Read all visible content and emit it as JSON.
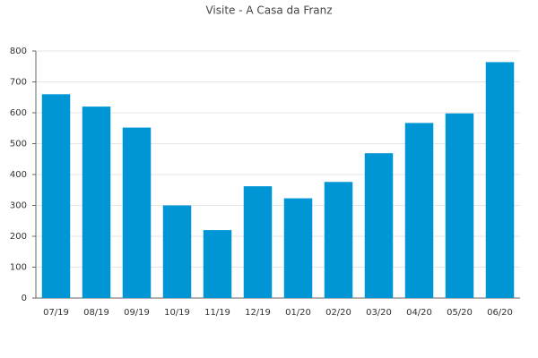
{
  "chart_data": {
    "type": "bar",
    "title": "Visite - A Casa da Franz",
    "categories": [
      "07/19",
      "08/19",
      "09/19",
      "10/19",
      "11/19",
      "12/19",
      "01/20",
      "02/20",
      "03/20",
      "04/20",
      "05/20",
      "06/20"
    ],
    "values": [
      660,
      620,
      552,
      300,
      220,
      362,
      323,
      376,
      469,
      567,
      598,
      764
    ],
    "color": "#0096d6",
    "ylim": [
      0,
      800
    ],
    "yticks": [
      0,
      100,
      200,
      300,
      400,
      500,
      600,
      700,
      800
    ],
    "grid": true
  }
}
